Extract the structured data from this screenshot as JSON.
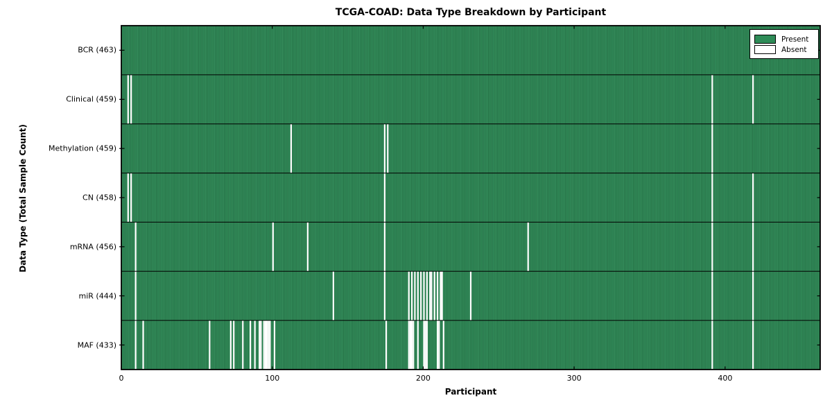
{
  "chart_data": {
    "type": "heatmap",
    "title": "TCGA-COAD: Data Type Breakdown by Participant",
    "xlabel": "Participant",
    "ylabel": "Data Type (Total Sample Count)",
    "n_participants": 463,
    "xlim": [
      0,
      463
    ],
    "x_ticks": [
      0,
      100,
      200,
      300,
      400
    ],
    "grid": false,
    "legend_position": "upper right",
    "legend": [
      {
        "label": "Present",
        "color": "#2e8b57"
      },
      {
        "label": "Absent",
        "color": "#ffffff"
      }
    ],
    "colors": {
      "present_fill": "#2e8b57",
      "bar_edge": "#1d5c38",
      "absent_fill": "#ffffff",
      "axis": "#000000"
    },
    "rows": [
      {
        "label": "BCR (463)",
        "name": "BCR",
        "total_samples": 463,
        "absent_participants": []
      },
      {
        "label": "Clinical (459)",
        "name": "Clinical",
        "total_samples": 459,
        "absent_participants": [
          4,
          6,
          391,
          418
        ]
      },
      {
        "label": "Methylation (459)",
        "name": "Methylation",
        "total_samples": 459,
        "absent_participants": [
          112,
          174,
          176,
          391
        ]
      },
      {
        "label": "CN (458)",
        "name": "CN",
        "total_samples": 458,
        "absent_participants": [
          4,
          6,
          174,
          391,
          418
        ]
      },
      {
        "label": "mRNA (456)",
        "name": "mRNA",
        "total_samples": 456,
        "absent_participants": [
          9,
          100,
          123,
          174,
          269,
          391,
          418
        ]
      },
      {
        "label": "miR (444)",
        "name": "miR",
        "total_samples": 444,
        "absent_participants": [
          9,
          140,
          174,
          190,
          192,
          194,
          196,
          198,
          200,
          202,
          204,
          205,
          207,
          209,
          211,
          212,
          231,
          391,
          418
        ]
      },
      {
        "label": "MAF (433)",
        "name": "MAF",
        "total_samples": 433,
        "absent_participants": [
          9,
          14,
          58,
          72,
          74,
          80,
          85,
          88,
          91,
          92,
          94,
          95,
          96,
          97,
          98,
          101,
          175,
          190,
          191,
          192,
          193,
          196,
          200,
          201,
          202,
          209,
          210,
          213,
          391,
          418
        ]
      }
    ]
  }
}
